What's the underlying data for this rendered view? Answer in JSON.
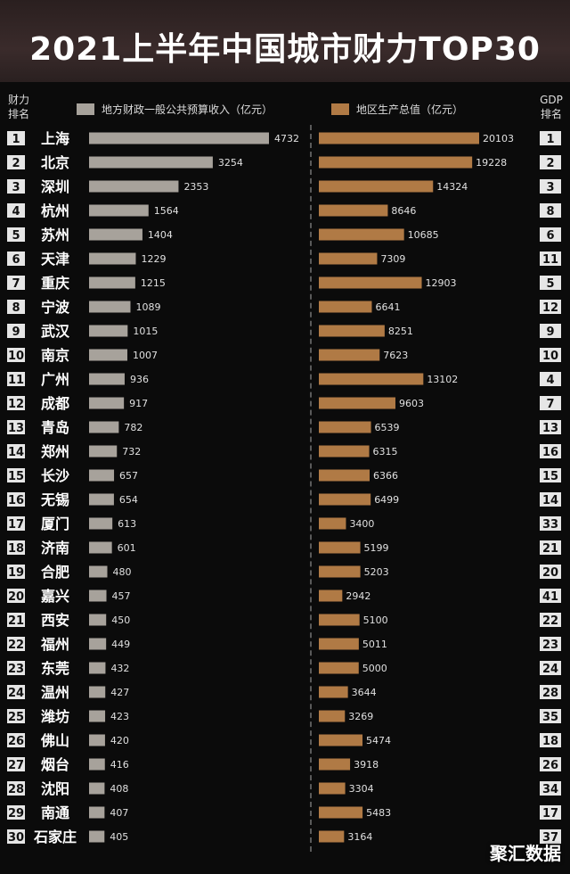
{
  "title": "2021上半年中国城市财力TOP30",
  "header": {
    "left_rank_label": "财力\n排名",
    "right_rank_label": "GDP\n排名"
  },
  "legend": {
    "revenue": "地方财政一般公共预算收入（亿元）",
    "gdp": "地区生产总值（亿元）"
  },
  "colors": {
    "revenue_bar": "#a7a29b",
    "gdp_bar": "#b07a45",
    "rank_box": "#e6e6e6",
    "rank_text": "#111111"
  },
  "watermark": "聚汇数据",
  "chart_data": {
    "type": "bar",
    "title": "2021上半年中国城市财力TOP30",
    "categories": [
      "上海",
      "北京",
      "深圳",
      "杭州",
      "苏州",
      "天津",
      "重庆",
      "宁波",
      "武汉",
      "南京",
      "广州",
      "成都",
      "青岛",
      "郑州",
      "长沙",
      "无锡",
      "厦门",
      "济南",
      "合肥",
      "嘉兴",
      "西安",
      "福州",
      "东莞",
      "温州",
      "潍坊",
      "佛山",
      "烟台",
      "沈阳",
      "南通",
      "石家庄"
    ],
    "fiscal_rank": [
      1,
      2,
      3,
      4,
      5,
      6,
      7,
      8,
      9,
      10,
      11,
      12,
      13,
      14,
      15,
      16,
      17,
      18,
      19,
      20,
      21,
      22,
      23,
      24,
      25,
      26,
      27,
      28,
      29,
      30
    ],
    "gdp_rank": [
      1,
      2,
      3,
      8,
      6,
      11,
      5,
      12,
      9,
      10,
      4,
      7,
      13,
      16,
      15,
      14,
      33,
      21,
      20,
      41,
      22,
      23,
      24,
      28,
      35,
      18,
      26,
      34,
      17,
      37
    ],
    "series": [
      {
        "name": "地方财政一般公共预算收入（亿元）",
        "values": [
          4732,
          3254,
          2353,
          1564,
          1404,
          1229,
          1215,
          1089,
          1015,
          1007,
          936,
          917,
          782,
          732,
          657,
          654,
          613,
          601,
          480,
          457,
          450,
          449,
          432,
          427,
          423,
          420,
          416,
          408,
          407,
          405
        ]
      },
      {
        "name": "地区生产总值（亿元）",
        "values": [
          20103,
          19228,
          14324,
          8646,
          10685,
          7309,
          12903,
          6641,
          8251,
          7623,
          13102,
          9603,
          6539,
          6315,
          6366,
          6499,
          3400,
          5199,
          5203,
          2942,
          5100,
          5011,
          5000,
          3644,
          3269,
          5474,
          3918,
          3304,
          5483,
          3164
        ]
      }
    ]
  }
}
